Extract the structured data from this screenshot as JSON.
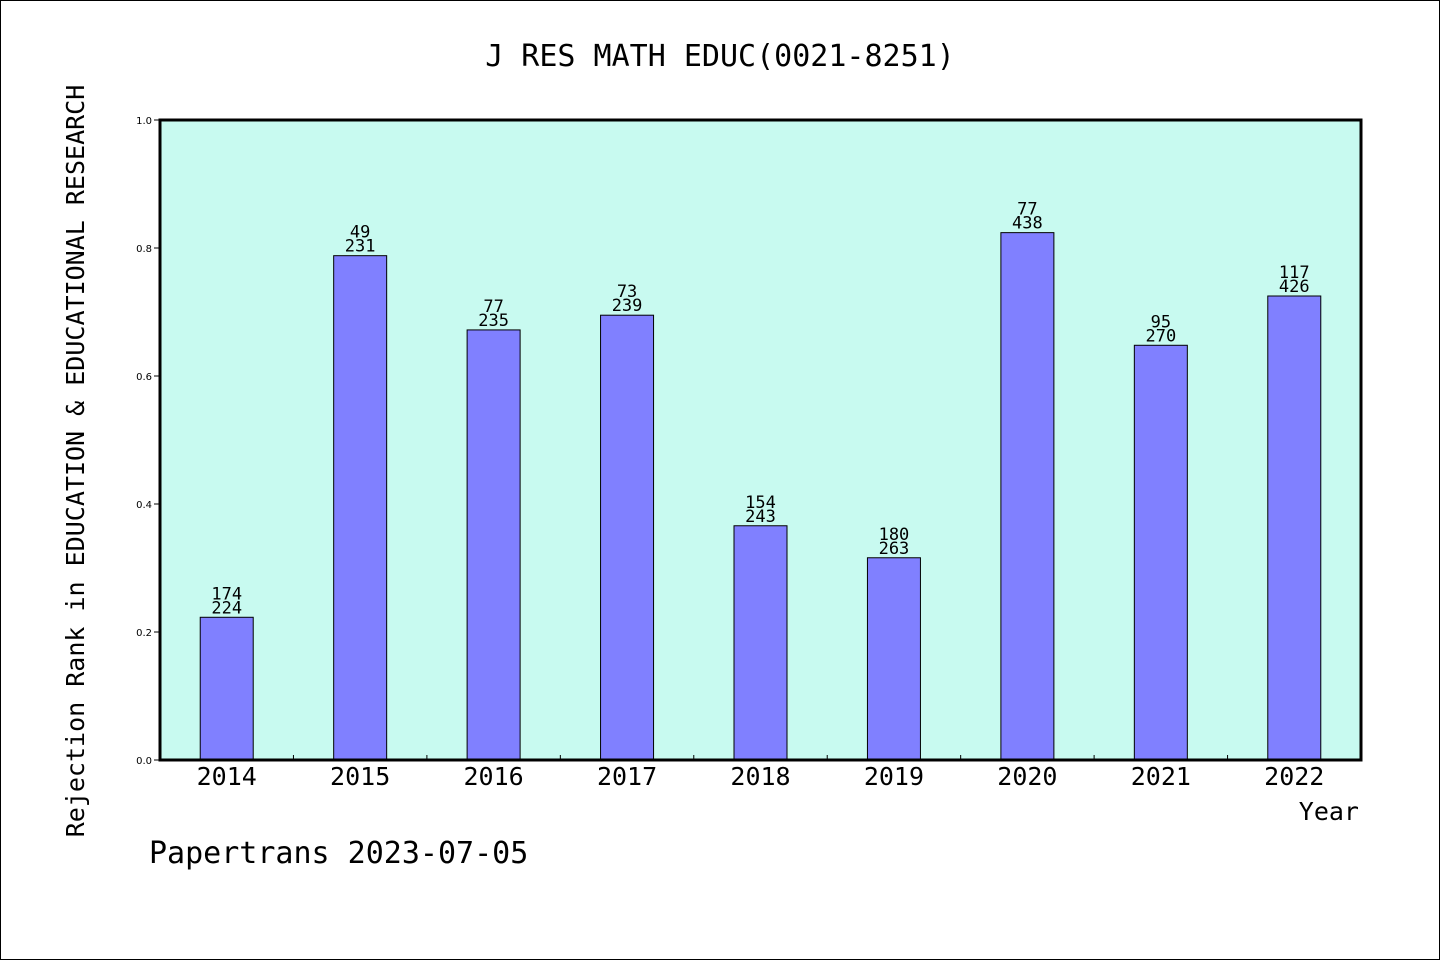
{
  "chart_data": {
    "type": "bar",
    "title": "J RES MATH EDUC(0021-8251)",
    "xlabel": "Year",
    "ylabel": "Rejection Rank in EDUCATION & EDUCATIONAL RESEARCH",
    "footer": "Papertrans 2023-07-05",
    "categories": [
      "2014",
      "2015",
      "2016",
      "2017",
      "2018",
      "2019",
      "2020",
      "2021",
      "2022"
    ],
    "values": [
      0.223,
      0.788,
      0.672,
      0.695,
      0.366,
      0.316,
      0.824,
      0.648,
      0.725
    ],
    "label_top": [
      "174",
      "49",
      "77",
      "73",
      "154",
      "180",
      "77",
      "95",
      "117"
    ],
    "label_bottom": [
      "224",
      "231",
      "235",
      "239",
      "243",
      "263",
      "438",
      "270",
      "426"
    ],
    "ylim": [
      0,
      1.0
    ],
    "yticks": [
      "0.0",
      "0.2",
      "0.4",
      "0.6",
      "0.8",
      "1.0"
    ],
    "colors": {
      "plot_background": "#c8faf0",
      "bar_fill": "#8080ff",
      "bar_stroke": "#000000"
    }
  }
}
